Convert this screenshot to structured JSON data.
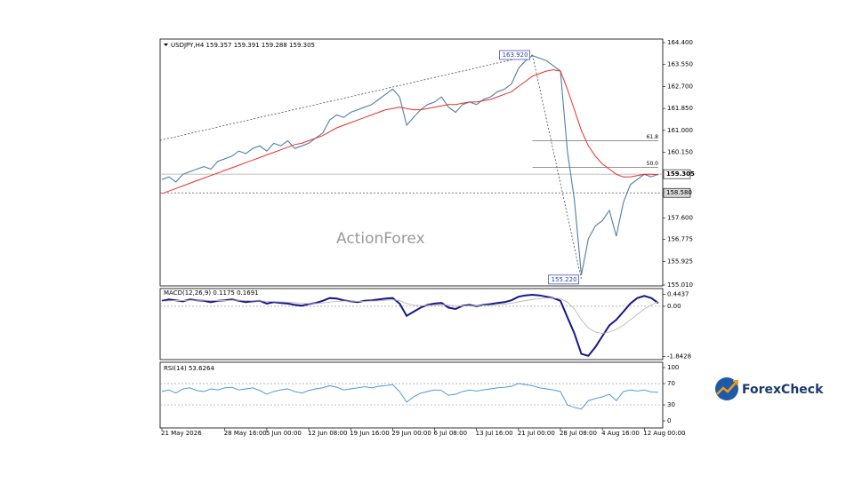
{
  "chart_data": [
    {
      "type": "line",
      "title": "USDJPY,H4  159.357 159.391 159.288 159.305",
      "watermark": "ActionForex",
      "categories": [
        "21 May 2026",
        null,
        null,
        null,
        null,
        null,
        null,
        null,
        null,
        "28 May 16:00",
        null,
        null,
        null,
        null,
        null,
        "5 Jun 00:00",
        null,
        null,
        null,
        null,
        null,
        "12 Jun 08:00",
        null,
        null,
        null,
        null,
        null,
        "19 Jun 16:00",
        null,
        null,
        null,
        null,
        null,
        "29 Jun 00:00",
        null,
        null,
        null,
        null,
        null,
        "6 Jul 08:00",
        null,
        null,
        null,
        null,
        null,
        "13 Jul 16:00",
        null,
        null,
        null,
        null,
        null,
        "21 Jul 00:00",
        null,
        null,
        null,
        null,
        null,
        "28 Jul 08:00",
        null,
        null,
        null,
        null,
        null,
        "4 Aug 16:00",
        null,
        null,
        null,
        null,
        null,
        "12 Aug 00:00",
        null,
        null
      ],
      "series": [
        {
          "color": "#4f7fa6",
          "values": [
            159.1,
            159.2,
            159.0,
            159.3,
            159.4,
            159.5,
            159.6,
            159.5,
            159.8,
            159.9,
            160.0,
            160.2,
            160.1,
            160.3,
            160.4,
            160.2,
            160.5,
            160.4,
            160.6,
            160.3,
            160.4,
            160.5,
            160.7,
            160.9,
            161.4,
            161.6,
            161.5,
            161.7,
            161.8,
            161.9,
            162.0,
            162.2,
            162.4,
            162.6,
            162.3,
            161.2,
            161.5,
            161.8,
            162.0,
            162.1,
            162.3,
            161.9,
            161.7,
            162.0,
            162.1,
            162.0,
            162.2,
            162.3,
            162.5,
            162.6,
            162.8,
            163.4,
            163.7,
            163.9,
            163.8,
            163.7,
            163.5,
            163.3,
            160.2,
            158.3,
            155.4,
            156.8,
            157.3,
            157.5,
            157.9,
            156.9,
            158.2,
            158.9,
            159.1,
            159.3,
            159.2,
            159.305
          ]
        },
        {
          "color": "#e8302a",
          "values": [
            158.55,
            158.65,
            158.75,
            158.85,
            158.95,
            159.05,
            159.15,
            159.25,
            159.35,
            159.45,
            159.55,
            159.65,
            159.75,
            159.85,
            159.95,
            160.05,
            160.15,
            160.25,
            160.35,
            160.45,
            160.5,
            160.6,
            160.7,
            160.8,
            160.95,
            161.1,
            161.2,
            161.3,
            161.4,
            161.5,
            161.6,
            161.7,
            161.8,
            161.85,
            161.9,
            161.85,
            161.8,
            161.8,
            161.85,
            161.9,
            161.95,
            162.0,
            162.0,
            162.05,
            162.1,
            162.1,
            162.15,
            162.2,
            162.3,
            162.4,
            162.5,
            162.7,
            162.9,
            163.1,
            163.2,
            163.3,
            163.35,
            163.3,
            162.6,
            161.8,
            161.0,
            160.4,
            160.0,
            159.7,
            159.5,
            159.3,
            159.2,
            159.2,
            159.25,
            159.3,
            159.3,
            159.28
          ]
        }
      ],
      "ylim": [
        154.94,
        164.47
      ],
      "yticks": [
        {
          "value": 164.4,
          "label": "164.400"
        },
        {
          "value": 163.55,
          "label": "163.550"
        },
        {
          "value": 162.7,
          "label": "162.700"
        },
        {
          "value": 161.85,
          "label": "161.850"
        },
        {
          "value": 161.0,
          "label": "161.000"
        },
        {
          "value": 160.15,
          "label": "160.150"
        },
        {
          "value": 157.6,
          "label": "157.600"
        },
        156.775,
        155.925,
        {
          "value": 155.01,
          "label": "155.010"
        }
      ],
      "last_price": {
        "value": 159.305,
        "label": "159.305"
      },
      "support": {
        "value": 158.58,
        "label": "158.580"
      },
      "high": {
        "value": 163.92,
        "label": "163.920"
      },
      "low": {
        "value": 155.22,
        "label": "155.220"
      },
      "fib_levels": [
        61.8,
        {
          "value": 50,
          "label": "50.0"
        }
      ]
    },
    {
      "type": "line",
      "title": "MACD(12,26,9) 0.1175 0.1691",
      "series": [
        {
          "color": "#17178a",
          "values": [
            0.2,
            0.25,
            0.22,
            0.18,
            0.25,
            0.22,
            0.2,
            0.15,
            0.2,
            0.22,
            0.25,
            0.2,
            0.15,
            0.18,
            0.2,
            0.1,
            0.15,
            0.12,
            0.1,
            0.05,
            0.02,
            0.08,
            0.12,
            0.2,
            0.3,
            0.28,
            0.22,
            0.18,
            0.15,
            0.2,
            0.22,
            0.25,
            0.28,
            0.3,
            0.1,
            -0.35,
            -0.2,
            -0.05,
            0.05,
            0.1,
            0.12,
            -0.05,
            -0.1,
            0.02,
            0.05,
            0.0,
            0.05,
            0.08,
            0.12,
            0.15,
            0.22,
            0.35,
            0.4,
            0.42,
            0.4,
            0.35,
            0.3,
            0.2,
            -0.4,
            -1.0,
            -1.75,
            -1.82,
            -1.5,
            -1.1,
            -0.7,
            -0.5,
            -0.2,
            0.1,
            0.3,
            0.38,
            0.3,
            0.1175
          ]
        },
        {
          "color": "#b8b8b8",
          "values": [
            0.18,
            0.2,
            0.21,
            0.21,
            0.22,
            0.22,
            0.22,
            0.21,
            0.21,
            0.21,
            0.22,
            0.22,
            0.21,
            0.2,
            0.2,
            0.18,
            0.17,
            0.16,
            0.15,
            0.13,
            0.11,
            0.1,
            0.1,
            0.12,
            0.15,
            0.18,
            0.19,
            0.19,
            0.18,
            0.18,
            0.19,
            0.2,
            0.22,
            0.24,
            0.21,
            0.1,
            0.04,
            0.02,
            0.03,
            0.04,
            0.06,
            0.04,
            0.01,
            0.01,
            0.02,
            0.02,
            0.03,
            0.04,
            0.06,
            0.08,
            0.11,
            0.16,
            0.21,
            0.25,
            0.28,
            0.3,
            0.3,
            0.28,
            0.15,
            -0.1,
            -0.5,
            -0.8,
            -0.95,
            -1.0,
            -0.95,
            -0.85,
            -0.7,
            -0.5,
            -0.3,
            -0.1,
            0.05,
            0.1691
          ]
        }
      ],
      "ylim": [
        -1.96,
        0.65
      ],
      "yticks": [
        0.4437,
        {
          "value": 0,
          "label": "0.00"
        },
        -1.8428
      ],
      "levels": [
        0
      ]
    },
    {
      "type": "line",
      "title": "RSI(14) 53.6264",
      "series": [
        {
          "color": "#3d8fdc",
          "values": [
            55,
            58,
            52,
            60,
            62,
            57,
            55,
            60,
            58,
            62,
            63,
            58,
            60,
            62,
            57,
            50,
            55,
            58,
            60,
            55,
            52,
            57,
            60,
            62,
            66,
            63,
            58,
            60,
            62,
            64,
            62,
            65,
            66,
            68,
            55,
            35,
            45,
            52,
            55,
            58,
            57,
            48,
            50,
            55,
            58,
            56,
            58,
            60,
            62,
            63,
            65,
            70,
            68,
            66,
            62,
            60,
            58,
            55,
            30,
            25,
            22,
            38,
            42,
            45,
            50,
            38,
            55,
            58,
            56,
            58,
            54,
            53.6264
          ]
        }
      ],
      "ylim": [
        -10,
        106.7
      ],
      "yticks": [
        100,
        70,
        30,
        0
      ],
      "levels": [
        70,
        30
      ]
    }
  ],
  "logo": "ForexCheck"
}
